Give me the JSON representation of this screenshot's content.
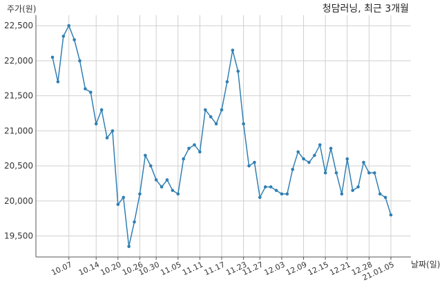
{
  "chart_data": {
    "type": "line",
    "title": "청담러닝, 최근 3개월",
    "ylabel": "주가(원)",
    "xlabel": "날짜(일)",
    "ylim": [
      19200,
      22650
    ],
    "yticks": [
      19500,
      20000,
      20500,
      21000,
      21500,
      22000,
      22500
    ],
    "ytick_labels": [
      "19,500",
      "20,000",
      "20,500",
      "21,000",
      "21,500",
      "22,000",
      "22,500"
    ],
    "xtick_labels": [
      "10.07",
      "10.14",
      "10.20",
      "10.26",
      "10.30",
      "11.05",
      "11.11",
      "11.17",
      "11.23",
      "11.27",
      "12.03",
      "12.09",
      "12.15",
      "12.21",
      "12.28",
      "21.01.05"
    ],
    "xtick_index": [
      3,
      8,
      12,
      16,
      19,
      23,
      27,
      31,
      35,
      38,
      42,
      46,
      50,
      54,
      58,
      62
    ],
    "grid": true,
    "color": "#2f7fb3",
    "series": [
      {
        "values": [
          22050,
          21700,
          22350,
          22500,
          22300,
          22000,
          21600,
          21550,
          21100,
          21300,
          20900,
          21000,
          19950,
          20050,
          19350,
          19700,
          20100,
          20650,
          20500,
          20300,
          20200,
          20300,
          20150,
          20100,
          20600,
          20750,
          20800,
          20700,
          21300,
          21200,
          21100,
          21300,
          21700,
          22150,
          21850,
          21100,
          20500,
          20550,
          20050,
          20200,
          20200,
          20150,
          20100,
          20100,
          20450,
          20700,
          20600,
          20550,
          20650,
          20800,
          20400,
          20750,
          20400,
          20100,
          20600,
          20150,
          20200,
          20550,
          20400,
          20400,
          20100,
          20050,
          19800
        ]
      }
    ]
  }
}
